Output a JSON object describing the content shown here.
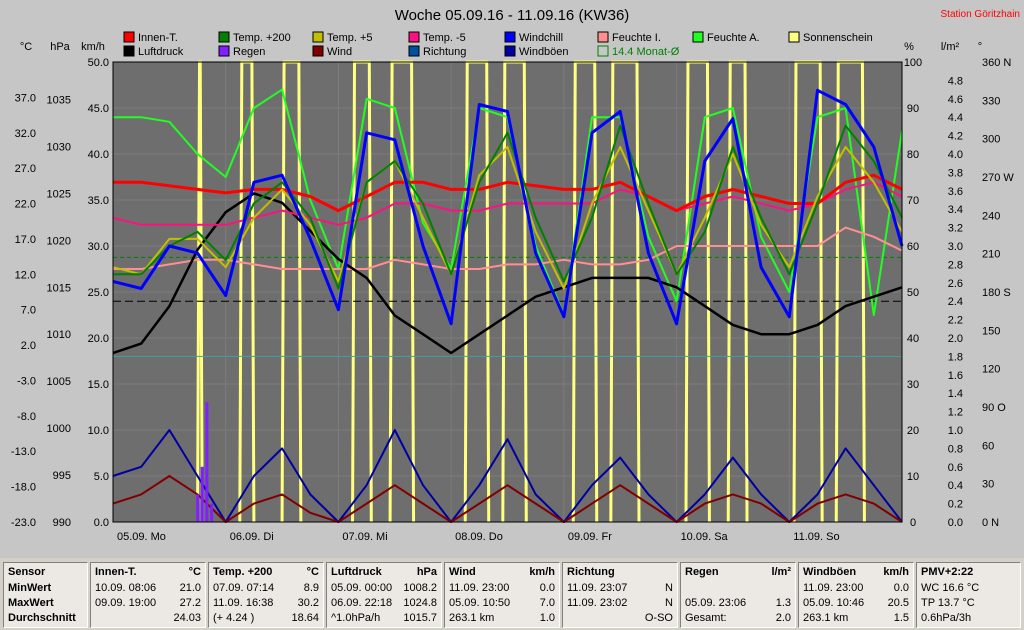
{
  "chart_data": {
    "type": "line",
    "title": "Woche 05.09.16 - 11.09.16 (KW36)",
    "station": "Station Göritzhain",
    "x_days": [
      "05.09. Mo",
      "06.09. Di",
      "07.09. Mi",
      "08.09. Do",
      "09.09. Fr",
      "10.09. Sa",
      "11.09. So"
    ],
    "axes": {
      "celsius": {
        "unit": "°C",
        "range": [
          -23,
          42
        ],
        "ticks": [
          "37.0",
          "32.0",
          "27.0",
          "22.0",
          "17.0",
          "12.0",
          "7.0",
          "2.0",
          "-3.0",
          "-8.0",
          "-13.0",
          "-18.0",
          "-23.0"
        ]
      },
      "hpa": {
        "unit": "hPa",
        "range": [
          990,
          1039
        ],
        "ticks": [
          "1035",
          "1030",
          "1025",
          "1020",
          "1015",
          "1010",
          "1005",
          "1000",
          "995",
          "990"
        ]
      },
      "kmh": {
        "unit": "km/h",
        "range": [
          0,
          50
        ],
        "ticks": [
          "50.0",
          "45.0",
          "40.0",
          "35.0",
          "30.0",
          "25.0",
          "20.0",
          "15.0",
          "10.0",
          "5.0",
          "0.0"
        ]
      },
      "percent": {
        "unit": "%",
        "range": [
          0,
          100
        ],
        "ticks": [
          "100",
          "90",
          "80",
          "70",
          "60",
          "50",
          "40",
          "30",
          "20",
          "10",
          "0"
        ]
      },
      "rain": {
        "unit": "l/m²",
        "range": [
          0,
          5
        ],
        "ticks": [
          "4.8",
          "4.6",
          "4.4",
          "4.2",
          "4.0",
          "3.8",
          "3.6",
          "3.4",
          "3.2",
          "3.0",
          "2.8",
          "2.6",
          "2.4",
          "2.2",
          "2.0",
          "1.8",
          "1.6",
          "1.4",
          "1.2",
          "1.0",
          "0.8",
          "0.6",
          "0.4",
          "0.2",
          "0.0"
        ]
      },
      "direction": {
        "unit": "°",
        "range": [
          0,
          360
        ],
        "ticks": [
          "360 N",
          "330",
          "300",
          "270 W",
          "240",
          "210",
          "180 S",
          "150",
          "120",
          "90 O",
          "60",
          "30",
          "0 N"
        ]
      }
    },
    "series": [
      {
        "name": "Innen-T.",
        "axis": "celsius",
        "color": "#ff0000"
      },
      {
        "name": "Temp. +200",
        "axis": "celsius",
        "color": "#008000"
      },
      {
        "name": "Temp. +5",
        "axis": "celsius",
        "color": "#c0c000"
      },
      {
        "name": "Temp. -5",
        "axis": "celsius",
        "color": "#ff1080"
      },
      {
        "name": "Windchill",
        "axis": "celsius",
        "color": "#0000ff"
      },
      {
        "name": "Feuchte I.",
        "axis": "percent",
        "color": "#ff9090"
      },
      {
        "name": "Feuchte A.",
        "axis": "percent",
        "color": "#20ff20"
      },
      {
        "name": "Sonnenschein",
        "axis": "percent",
        "color": "#ffff80"
      },
      {
        "name": "Luftdruck",
        "axis": "hpa",
        "color": "#000000"
      },
      {
        "name": "Regen",
        "axis": "rain",
        "color": "#8020ff"
      },
      {
        "name": "Wind",
        "axis": "kmh",
        "color": "#800000"
      },
      {
        "name": "Richtung",
        "axis": "direction",
        "color": "#0050a0"
      },
      {
        "name": "Windböen",
        "axis": "kmh",
        "color": "#0000a0"
      },
      {
        "name": "14.4 Monat-Ø",
        "axis": "celsius",
        "color": "#008000"
      }
    ],
    "legend": {
      "row1": [
        "Innen-T.",
        "Temp. +200",
        "Temp. +5",
        "Temp. -5",
        "Windchill",
        "Feuchte I.",
        "Feuchte A.",
        "Sonnenschein"
      ],
      "row2": [
        "Luftdruck",
        "Regen",
        "Wind",
        "Richtung",
        "Windböen",
        "14.4 Monat-Ø"
      ]
    },
    "monat_avg": 14.4,
    "x_hours": [
      0,
      6,
      12,
      18,
      24,
      30,
      36,
      42,
      48,
      54,
      60,
      66,
      72,
      78,
      84,
      90,
      96,
      102,
      108,
      114,
      120,
      126,
      132,
      138,
      144,
      150,
      156,
      162,
      168
    ],
    "temp200": [
      12,
      12,
      16,
      18,
      14,
      22,
      25,
      20,
      10,
      25,
      28,
      22,
      12,
      25,
      32,
      20,
      11,
      20,
      33,
      22,
      12,
      18,
      30,
      20,
      12,
      22,
      33,
      28,
      20
    ],
    "temp5": [
      13,
      12,
      17,
      17,
      13,
      20,
      24,
      19,
      11,
      25,
      28,
      20,
      12,
      26,
      30,
      18,
      10,
      22,
      30,
      21,
      12,
      20,
      29,
      19,
      13,
      23,
      30,
      25,
      18
    ],
    "windchill": [
      11,
      10,
      16,
      15,
      9,
      25,
      26,
      17,
      7,
      32,
      31,
      16,
      5,
      36,
      35,
      15,
      6,
      32,
      35,
      15,
      5,
      28,
      34,
      13,
      6,
      38,
      36,
      30,
      16
    ],
    "innen": [
      25,
      25,
      24.5,
      24,
      23.5,
      24,
      24,
      23,
      21,
      23,
      25,
      25,
      24,
      24,
      25,
      24.5,
      24,
      24,
      25,
      23,
      21,
      23,
      24,
      23,
      22,
      22,
      25,
      26,
      24
    ],
    "temp_m5": [
      20,
      19,
      19,
      19,
      19,
      20,
      21,
      20,
      19,
      20,
      22,
      22,
      21,
      21,
      22,
      22,
      22,
      22,
      24,
      23,
      21,
      22,
      23,
      22,
      21,
      22,
      24,
      25,
      23
    ],
    "feuchte_i": [
      55,
      55,
      56,
      57,
      57,
      56,
      55,
      55,
      55,
      55,
      57,
      56,
      55,
      55,
      56,
      56,
      57,
      56,
      56,
      57,
      60,
      60,
      60,
      60,
      60,
      60,
      64,
      62,
      59
    ],
    "feuchte_a": [
      88,
      88,
      87,
      80,
      75,
      90,
      94,
      70,
      55,
      92,
      90,
      65,
      55,
      90,
      88,
      60,
      45,
      88,
      88,
      62,
      48,
      88,
      90,
      62,
      50,
      88,
      90,
      45,
      85
    ],
    "luftdruck": [
      1008,
      1009,
      1013,
      1019,
      1023,
      1025,
      1024,
      1021,
      1018,
      1016,
      1012,
      1010,
      1008,
      1010,
      1012,
      1014,
      1015,
      1016,
      1016,
      1016,
      1015,
      1013,
      1011,
      1010,
      1010,
      1011,
      1013,
      1014,
      1015
    ],
    "wind": [
      2,
      3,
      5,
      3,
      0,
      2,
      3,
      1,
      0,
      2,
      4,
      2,
      0,
      2,
      4,
      2,
      0,
      2,
      4,
      2,
      0,
      2,
      3,
      2,
      0,
      2,
      3,
      2,
      0
    ],
    "boeen": [
      5,
      6,
      10,
      5,
      0,
      5,
      8,
      3,
      0,
      4,
      10,
      4,
      0,
      4,
      9,
      3,
      0,
      4,
      7,
      3,
      0,
      3,
      7,
      3,
      0,
      3,
      8,
      4,
      0
    ],
    "regen": [
      {
        "h": 18,
        "v": 0.3
      },
      {
        "h": 19,
        "v": 0.6
      },
      {
        "h": 20,
        "v": 1.3
      },
      {
        "h": 21,
        "v": 0.2
      }
    ],
    "sunshine_days": [
      [
        18,
        19
      ],
      [
        27,
        30
      ],
      [
        36,
        40
      ],
      [
        51,
        55
      ],
      [
        59,
        64
      ],
      [
        75,
        80
      ],
      [
        83,
        88
      ],
      [
        98,
        103
      ],
      [
        106,
        112
      ],
      [
        122,
        127
      ],
      [
        131,
        135
      ],
      [
        145,
        151
      ],
      [
        154,
        160
      ]
    ]
  },
  "summary": {
    "labels": {
      "sensor": "Sensor",
      "min": "MinWert",
      "max": "MaxWert",
      "avg": "Durchschnitt"
    },
    "cols": [
      {
        "title": "Innen-T.",
        "unit": "°C",
        "min_time": "10.09.  08:06",
        "min": "21.0",
        "max_time": "09.09.  19:00",
        "max": "27.2",
        "avg_note": "",
        "avg": "24.03"
      },
      {
        "title": "Temp. +200",
        "unit": "°C",
        "min_time": "07.09.  07:14",
        "min": "8.9",
        "max_time": "11.09.  16:38",
        "max": "30.2",
        "avg_note": "(+ 4.24 )",
        "avg": "18.64"
      },
      {
        "title": "Luftdruck",
        "unit": "hPa",
        "min_time": "05.09.  00:00",
        "min": "1008.2",
        "max_time": "06.09.  22:18",
        "max": "1024.8",
        "avg_note": "^1.0hPa/h",
        "avg": "1015.7"
      },
      {
        "title": "Wind",
        "unit": "km/h",
        "min_time": "11.09.  23:00",
        "min": "0.0",
        "max_time": "05.09.  10:50",
        "max": "7.0",
        "avg_note": "263.1 km",
        "avg": "1.0"
      },
      {
        "title": "Richtung",
        "unit": "",
        "min_time": "11.09.  23:07",
        "min": "N",
        "max_time": "11.09.  23:02",
        "max": "N",
        "avg_note": "",
        "avg": "O-SO"
      },
      {
        "title": "Regen",
        "unit": "l/m²",
        "min_time": "",
        "min": "",
        "max_time": "05.09.  23:06",
        "max": "1.3",
        "avg_note": "Gesamt:",
        "avg": "2.0"
      },
      {
        "title": "Windböen",
        "unit": "km/h",
        "min_time": "11.09.  23:00",
        "min": "0.0",
        "max_time": "05.09.  10:46",
        "max": "20.5",
        "avg_note": "263.1 km",
        "avg": "1.5"
      }
    ],
    "pmv": {
      "title": "PMV+2:22",
      "l1": "WC 16.6 °C",
      "l2": "TP 13.7 °C",
      "l3": "0.6hPa/3h"
    }
  }
}
